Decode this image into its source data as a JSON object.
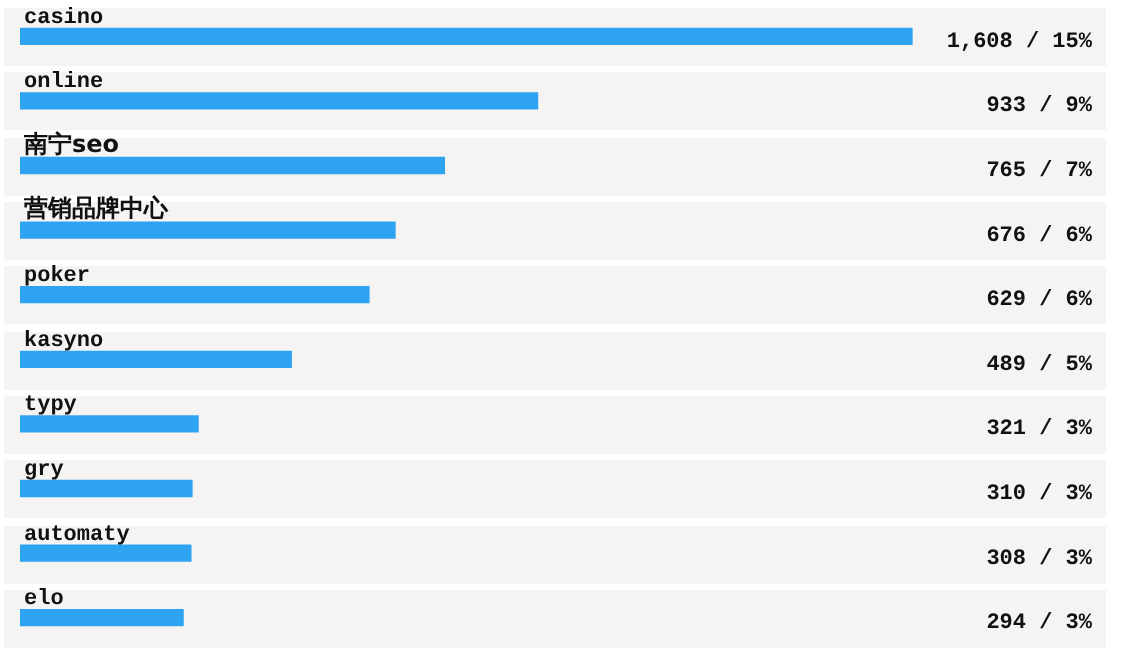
{
  "chart_data": {
    "type": "bar",
    "orientation": "horizontal",
    "categories": [
      "casino",
      "online",
      "南宁seo",
      "营销品牌中心",
      "poker",
      "kasyno",
      "typy",
      "gry",
      "automaty",
      "elo"
    ],
    "values": [
      1608,
      933,
      765,
      676,
      629,
      489,
      321,
      310,
      308,
      294
    ],
    "value_labels": [
      "1,608 / 15%",
      "933 / 9%",
      "765 / 7%",
      "676 / 6%",
      "629 / 6%",
      "489 / 5%",
      "321 / 3%",
      "310 / 3%",
      "308 / 3%",
      "294 / 3%"
    ],
    "color": "#2ea3f2",
    "legend": false
  }
}
